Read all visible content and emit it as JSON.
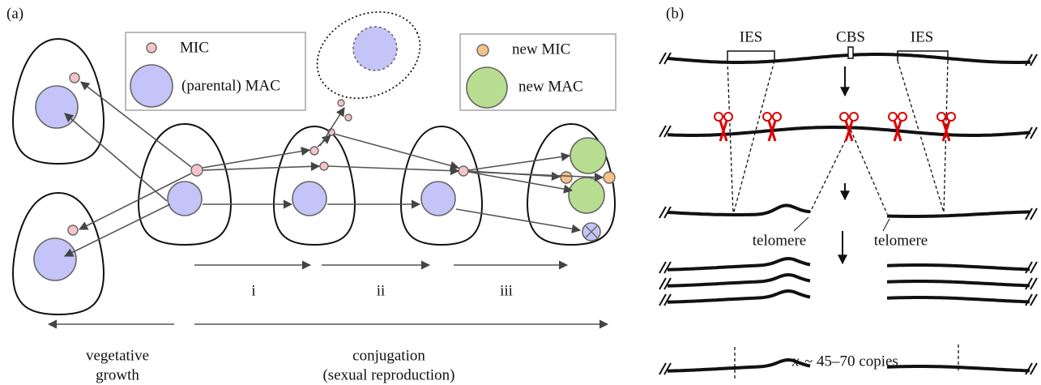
{
  "panel_a": {
    "label": "(a)",
    "legend": {
      "mic": "MIC",
      "mac": "(parental) MAC"
    },
    "legend_new": {
      "mic": "new MIC",
      "mac": "new MAC"
    },
    "stages": [
      "i",
      "ii",
      "iii"
    ],
    "vegetative": [
      "vegetative",
      "growth"
    ],
    "conjugation": [
      "conjugation",
      "(sexual reproduction)"
    ]
  },
  "panel_b": {
    "label": "(b)",
    "ies": [
      "IES",
      "IES"
    ],
    "cbs": "CBS",
    "telomeres": [
      "telomere",
      "telomere"
    ],
    "copies": {
      "variable": "x",
      "text": "~ 45–70 copies"
    }
  }
}
